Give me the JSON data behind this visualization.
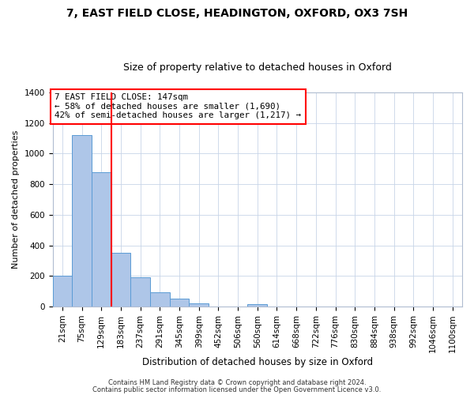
{
  "title1": "7, EAST FIELD CLOSE, HEADINGTON, OXFORD, OX3 7SH",
  "title2": "Size of property relative to detached houses in Oxford",
  "xlabel": "Distribution of detached houses by size in Oxford",
  "ylabel": "Number of detached properties",
  "bar_labels": [
    "21sqm",
    "75sqm",
    "129sqm",
    "183sqm",
    "237sqm",
    "291sqm",
    "345sqm",
    "399sqm",
    "452sqm",
    "506sqm",
    "560sqm",
    "614sqm",
    "668sqm",
    "722sqm",
    "776sqm",
    "830sqm",
    "884sqm",
    "938sqm",
    "992sqm",
    "1046sqm",
    "1100sqm"
  ],
  "bar_values": [
    200,
    1120,
    880,
    350,
    190,
    95,
    52,
    20,
    0,
    0,
    15,
    0,
    0,
    0,
    0,
    0,
    0,
    0,
    0,
    0,
    0
  ],
  "bar_color": "#aec6e8",
  "bar_edge_color": "#5b9bd5",
  "vline_x": 2.5,
  "vline_color": "red",
  "ylim": [
    0,
    1400
  ],
  "yticks": [
    0,
    200,
    400,
    600,
    800,
    1000,
    1200,
    1400
  ],
  "annotation_title": "7 EAST FIELD CLOSE: 147sqm",
  "annotation_line1": "← 58% of detached houses are smaller (1,690)",
  "annotation_line2": "42% of semi-detached houses are larger (1,217) →",
  "annotation_box_edgecolor": "red",
  "annotation_box_facecolor": "#ffffff",
  "footer1": "Contains HM Land Registry data © Crown copyright and database right 2024.",
  "footer2": "Contains public sector information licensed under the Open Government Licence v3.0.",
  "fig_facecolor": "#ffffff",
  "axes_facecolor": "#ffffff",
  "grid_color": "#c8d4e8",
  "spine_color": "#b0bcd0",
  "title1_fontsize": 10,
  "title2_fontsize": 9,
  "ylabel_fontsize": 8,
  "xlabel_fontsize": 8.5,
  "tick_fontsize": 7.5,
  "footer_fontsize": 6
}
